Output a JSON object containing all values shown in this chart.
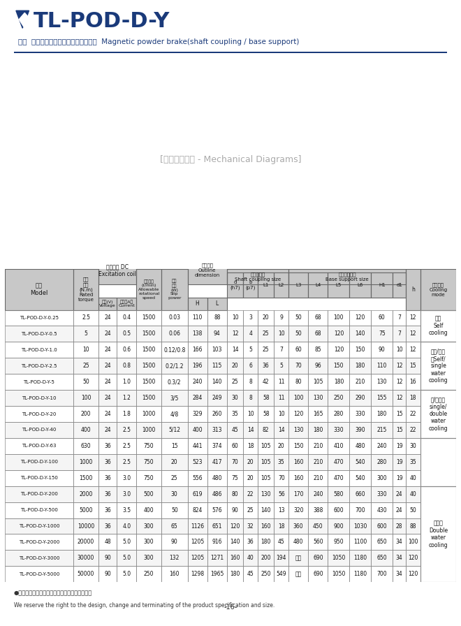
{
  "title_main": "TL-POD-D-Y",
  "title_sub_cn": "（軸聯結、機座支撐）磁粉制動器",
  "title_sub_en": "Magnetic powder brake(shaft coupling / base support)",
  "brand": "台菱",
  "bg_color": "#ffffff",
  "table_header_bg": "#d0d0d0",
  "table_header_bg2": "#e0e0e0",
  "table_border_color": "#888888",
  "title_color": "#1a3a7a",
  "text_color": "#222222",
  "col_headers_line1": [
    "型號\nModel",
    "額定\n轉矩\n(N.m)\nRated\ntorque",
    "激磁線圈 DC\nExcitation coil",
    "",
    "許用轉速\n(r/min)\nAllowable\nrotational\nspeed",
    "滑差\n功率\n(W)\nSlip\npower",
    "外形尺寸\nOutline\ndimension",
    "",
    "軸聯結尺寸\nShaft coupling size",
    "",
    "",
    "",
    "機座支撐尺寸\nBase support size",
    "",
    "",
    "",
    "",
    "",
    "冷卻方式\nCooling\nmode"
  ],
  "rows": [
    [
      "TL-POD-D-Y-0.25",
      "2.5",
      "24",
      "0.4",
      "1500",
      "0.03",
      "110",
      "88",
      "10",
      "3",
      "20",
      "9",
      "50",
      "68",
      "100",
      "120",
      "60",
      "7",
      "12",
      "自冷\nSelf\ncooling"
    ],
    [
      "TL-POD-D-Y-0.5",
      "5",
      "24",
      "0.5",
      "1500",
      "0.06",
      "138",
      "94",
      "12",
      "4",
      "25",
      "10",
      "50",
      "68",
      "120",
      "140",
      "75",
      "7",
      "12",
      ""
    ],
    [
      "TL-POD-D-Y-1.0",
      "10",
      "24",
      "0.6",
      "1500",
      "0.12/0.8",
      "166",
      "103",
      "14",
      "5",
      "25",
      "7",
      "60",
      "85",
      "120",
      "150",
      "90",
      "10",
      "12",
      "自冷/單水\n冷Self/\nsingle\nwater\ncooling"
    ],
    [
      "TL-POD-D-Y-2.5",
      "25",
      "24",
      "0.8",
      "1500",
      "0.2/1.2",
      "196",
      "115",
      "20",
      "6",
      "36",
      "5",
      "70",
      "96",
      "150",
      "180",
      "110",
      "12",
      "15",
      ""
    ],
    [
      "TL-POD-D-Y-5",
      "50",
      "24",
      "1.0",
      "1500",
      "0.3/2",
      "240",
      "140",
      "25",
      "8",
      "42",
      "11",
      "80",
      "105",
      "180",
      "210",
      "130",
      "12",
      "16",
      ""
    ],
    [
      "TL-POD-D-Y-10",
      "100",
      "24",
      "1.2",
      "1500",
      "3/5",
      "284",
      "249",
      "30",
      "8",
      "58",
      "11",
      "100",
      "130",
      "250",
      "290",
      "155",
      "12",
      "18",
      "單/雙水冷\nsingle/\ndouble\nwater\ncooling"
    ],
    [
      "TL-POD-D-Y-20",
      "200",
      "24",
      "1.8",
      "1000",
      "4/8",
      "329",
      "260",
      "35",
      "10",
      "58",
      "10",
      "120",
      "165",
      "280",
      "330",
      "180",
      "15",
      "22",
      ""
    ],
    [
      "TL-POD-D-Y-40",
      "400",
      "24",
      "2.5",
      "1000",
      "5/12",
      "400",
      "313",
      "45",
      "14",
      "82",
      "14",
      "130",
      "180",
      "330",
      "390",
      "215",
      "15",
      "22",
      ""
    ],
    [
      "TL-POD-D-Y-63",
      "630",
      "36",
      "2.5",
      "750",
      "15",
      "441",
      "374",
      "60",
      "18",
      "105",
      "20",
      "150",
      "210",
      "410",
      "480",
      "240",
      "19",
      "30",
      ""
    ],
    [
      "TL-POD-D-Y-100",
      "1000",
      "36",
      "2.5",
      "750",
      "20",
      "523",
      "417",
      "70",
      "20",
      "105",
      "35",
      "160",
      "210",
      "470",
      "540",
      "280",
      "19",
      "35",
      ""
    ],
    [
      "TL-POD-D-Y-150",
      "1500",
      "36",
      "3.0",
      "750",
      "25",
      "556",
      "480",
      "75",
      "20",
      "105",
      "70",
      "160",
      "210",
      "470",
      "540",
      "300",
      "19",
      "40",
      ""
    ],
    [
      "TL-POD-D-Y-200",
      "2000",
      "36",
      "3.0",
      "500",
      "30",
      "619",
      "486",
      "80",
      "22",
      "130",
      "56",
      "170",
      "240",
      "580",
      "660",
      "330",
      "24",
      "40",
      "雙水冷\nDouble\nwater\ncooling"
    ],
    [
      "TL-POD-D-Y-500",
      "5000",
      "36",
      "3.5",
      "400",
      "50",
      "824",
      "576",
      "90",
      "25",
      "140",
      "13",
      "320",
      "388",
      "600",
      "700",
      "430",
      "24",
      "50",
      ""
    ],
    [
      "TL-POD-D-Y-1000",
      "10000",
      "36",
      "4.0",
      "300",
      "65",
      "1126",
      "651",
      "120",
      "32",
      "160",
      "18",
      "360",
      "450",
      "900",
      "1030",
      "600",
      "28",
      "88",
      ""
    ],
    [
      "TL-POD-D-Y-2000",
      "20000",
      "48",
      "5.0",
      "300",
      "90",
      "1205",
      "916",
      "140",
      "36",
      "180",
      "45",
      "480",
      "560",
      "950",
      "1100",
      "650",
      "34",
      "100",
      ""
    ],
    [
      "TL-POD-D-Y-3000",
      "30000",
      "90",
      "5.0",
      "300",
      "132",
      "1205",
      "1271",
      "160",
      "40",
      "200",
      "194",
      "見圖",
      "690",
      "1050",
      "1180",
      "650",
      "34",
      "120",
      ""
    ],
    [
      "TL-POD-D-Y-5000",
      "50000",
      "90",
      "5.0",
      "250",
      "160",
      "1298",
      "1965",
      "180",
      "45",
      "250",
      "549",
      "見圖",
      "690",
      "1050",
      "1180",
      "700",
      "34",
      "120",
      ""
    ]
  ],
  "footer_cn": "●本公司保留產品規格尺寸設計變更使用之權利。",
  "footer_en": "We reserve the right to the design, change and terminating of the product specification and size.",
  "page_num": "-16-"
}
